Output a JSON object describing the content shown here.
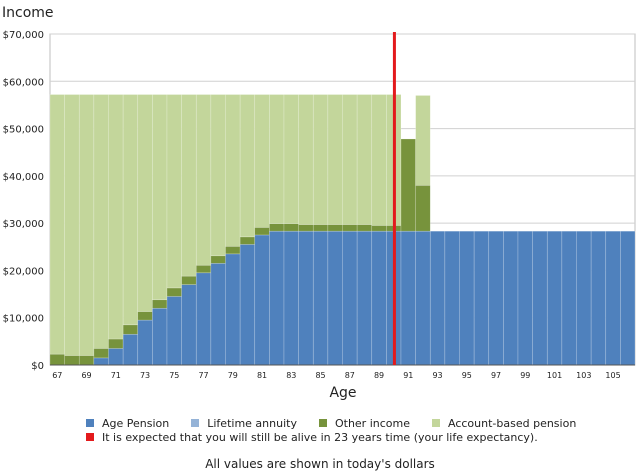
{
  "chart_data": {
    "type": "bar",
    "stacked": true,
    "title": "Income",
    "xlabel": "Age",
    "ylabel": "",
    "ylim": [
      0,
      70000
    ],
    "yticks": [
      0,
      10000,
      20000,
      30000,
      40000,
      50000,
      60000,
      70000
    ],
    "ytick_labels": [
      "$0",
      "$10,000",
      "$20,000",
      "$30,000",
      "$40,000",
      "$50,000",
      "$60,000",
      "$70,000"
    ],
    "xtick_labels": [
      "67",
      "69",
      "71",
      "73",
      "75",
      "77",
      "79",
      "81",
      "83",
      "85",
      "87",
      "89",
      "91",
      "93",
      "95",
      "97",
      "99",
      "101",
      "103",
      "105"
    ],
    "grid": true,
    "categories": [
      67,
      68,
      69,
      70,
      71,
      72,
      73,
      74,
      75,
      76,
      77,
      78,
      79,
      80,
      81,
      82,
      83,
      84,
      85,
      86,
      87,
      88,
      89,
      90,
      91,
      92,
      93,
      94,
      95,
      96,
      97,
      98,
      99,
      100,
      101,
      102,
      103,
      104,
      105,
      106
    ],
    "series": [
      {
        "name": "Age Pension",
        "color": "#4f81bd",
        "values": [
          0,
          0,
          0,
          1500,
          3500,
          6500,
          9500,
          12000,
          14500,
          17000,
          19500,
          21500,
          23500,
          25500,
          27500,
          28300,
          28300,
          28300,
          28300,
          28300,
          28300,
          28300,
          28300,
          28300,
          28300,
          28300,
          28300,
          28300,
          28300,
          28300,
          28300,
          28300,
          28300,
          28300,
          28300,
          28300,
          28300,
          28300,
          28300,
          28300
        ]
      },
      {
        "name": "Lifetime annuity",
        "color": "#95b3d7",
        "values": [
          0,
          0,
          0,
          0,
          0,
          0,
          0,
          0,
          0,
          0,
          0,
          0,
          0,
          0,
          0,
          0,
          0,
          0,
          0,
          0,
          0,
          0,
          0,
          0,
          0,
          0,
          0,
          0,
          0,
          0,
          0,
          0,
          0,
          0,
          0,
          0,
          0,
          0,
          0,
          0
        ]
      },
      {
        "name": "Other income",
        "color": "#77933c",
        "values": [
          2300,
          2000,
          2000,
          2000,
          2000,
          2000,
          1800,
          1800,
          1800,
          1800,
          1600,
          1600,
          1600,
          1600,
          1600,
          1600,
          1600,
          1400,
          1400,
          1400,
          1400,
          1400,
          1200,
          1200,
          19500,
          9700,
          0,
          0,
          0,
          0,
          0,
          0,
          0,
          0,
          0,
          0,
          0,
          0,
          0,
          0
        ]
      },
      {
        "name": "Account-based pension",
        "color": "#c3d69b",
        "values": [
          54900,
          55200,
          55200,
          53700,
          51700,
          48700,
          45900,
          43400,
          40900,
          38400,
          36100,
          34100,
          32100,
          30100,
          28100,
          27300,
          27300,
          27500,
          27500,
          27500,
          27500,
          27500,
          27700,
          27700,
          0,
          19000,
          0,
          0,
          0,
          0,
          0,
          0,
          0,
          0,
          0,
          0,
          0,
          0,
          0,
          0
        ]
      }
    ],
    "life_expectancy_age": 90,
    "life_expectancy_color": "#e31a1c"
  },
  "legend": {
    "age_pension": "Age Pension",
    "lifetime_annuity": "Lifetime annuity",
    "other_income": "Other income",
    "account_based_pension": "Account-based pension",
    "life_expectancy": "It is expected that you will still be alive in 23 years time (your life expectancy)."
  },
  "footnote": "All values are shown in today's dollars"
}
